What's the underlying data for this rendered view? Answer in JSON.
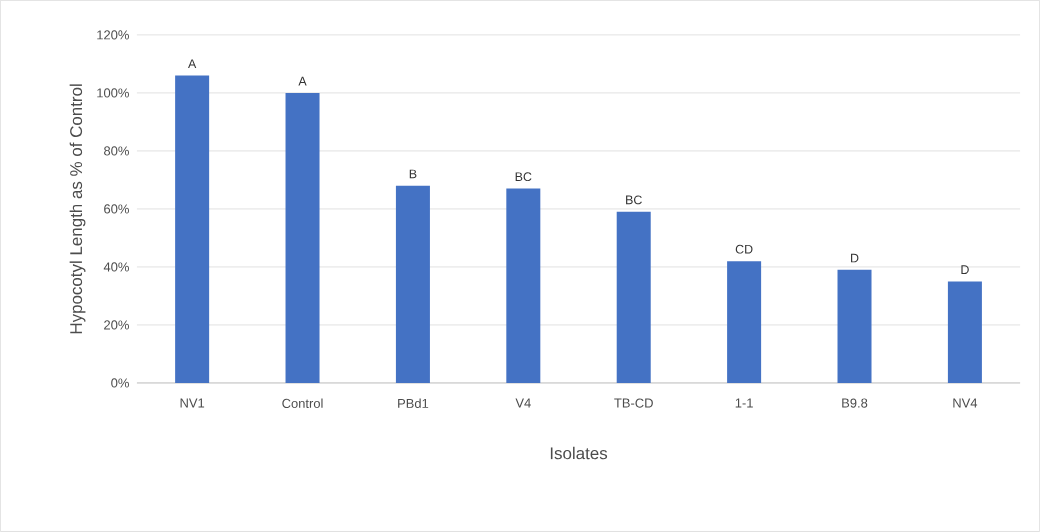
{
  "chart_data": {
    "type": "bar",
    "xlabel": "Isolates",
    "ylabel": "Hypocotyl Length as % of Control",
    "categories": [
      "NV1",
      "Control",
      "PBd1",
      "V4",
      "TB-CD",
      "1-1",
      "B9.8",
      "NV4"
    ],
    "values": [
      106,
      100,
      68,
      67,
      59,
      42,
      39,
      35
    ],
    "color": "#4472c4",
    "ylim": [
      0,
      120
    ],
    "yticks": [
      {
        "value": 0,
        "label": "0%"
      },
      {
        "value": 20,
        "label": "20%"
      },
      {
        "value": 40,
        "label": "40%"
      },
      {
        "value": 60,
        "label": "60%"
      },
      {
        "value": 80,
        "label": "80%"
      },
      {
        "value": 100,
        "label": "100%"
      },
      {
        "value": 120,
        "label": "120%"
      }
    ],
    "grid": "y",
    "annotations": [
      {
        "text": "A",
        "x": "NV1",
        "y": 106
      },
      {
        "text": "A",
        "x": "Control",
        "y": 100
      },
      {
        "text": "B",
        "x": "PBd1",
        "y": 68
      },
      {
        "text": "BC",
        "x": "V4",
        "y": 67
      },
      {
        "text": "BC",
        "x": "TB-CD",
        "y": 59
      },
      {
        "text": "CD",
        "x": "1-1",
        "y": 42
      },
      {
        "text": "D",
        "x": "B9.8",
        "y": 39
      },
      {
        "text": "D",
        "x": "NV4",
        "y": 35
      }
    ]
  }
}
